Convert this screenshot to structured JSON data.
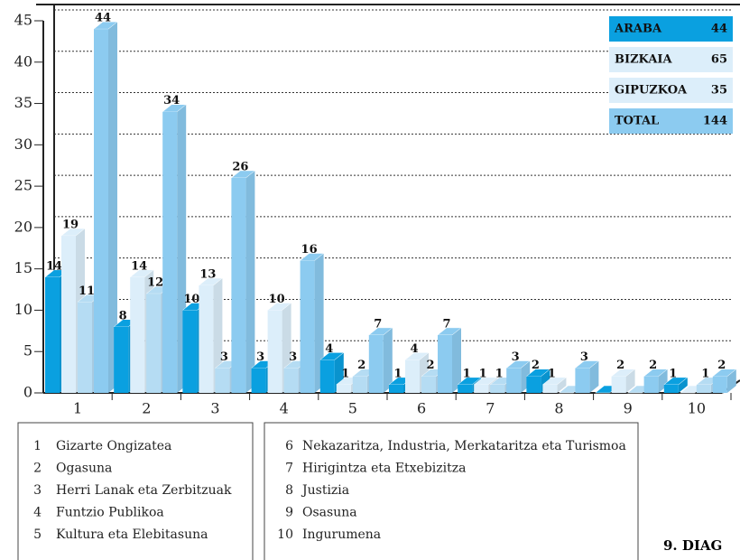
{
  "chart_data": {
    "type": "bar3d",
    "categories": [
      "1",
      "2",
      "3",
      "4",
      "5",
      "6",
      "7",
      "8",
      "9",
      "10"
    ],
    "series": [
      {
        "name": "ARABA",
        "total": 44,
        "color": "#0aa0e0",
        "values": [
          14,
          8,
          10,
          3,
          4,
          1,
          1,
          2,
          0,
          1
        ]
      },
      {
        "name": "BIZKAIA",
        "total": 65,
        "color": "#dceefa",
        "values": [
          19,
          14,
          13,
          10,
          1,
          4,
          1,
          1,
          2,
          0
        ]
      },
      {
        "name": "GIPUZKOA",
        "total": 35,
        "color": "#b5dcf3",
        "values": [
          11,
          12,
          3,
          3,
          2,
          2,
          1,
          0,
          0,
          1
        ]
      },
      {
        "name": "TOTAL",
        "total": 144,
        "color": "#8ccbf0",
        "values": [
          44,
          34,
          26,
          16,
          7,
          7,
          3,
          3,
          2,
          2
        ]
      }
    ],
    "ylim": [
      0,
      45
    ],
    "yticks": [
      0,
      5,
      10,
      15,
      20,
      25,
      30,
      35,
      40,
      45
    ],
    "grid": true,
    "descriptions": [
      "Gizarte Ongizatea",
      "Ogasuna",
      "Herri Lanak eta Zerbitzuak",
      "Funtzio Publikoa",
      "Kultura eta Elebitasuna",
      "Nekazaritza, Industria, Merkataritza eta Turismoa",
      "Hirigintza eta Etxebizitza",
      "Justizia",
      "Osasuna",
      "Ingurumena"
    ],
    "caption": "9. DIAG"
  }
}
